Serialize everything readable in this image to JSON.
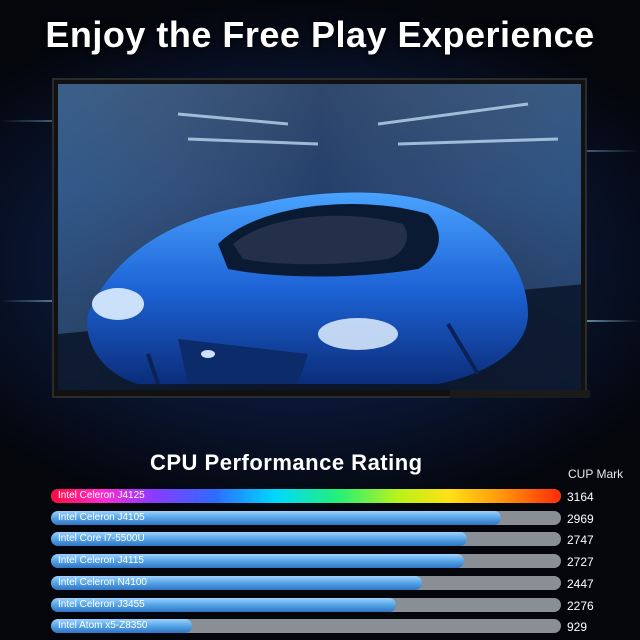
{
  "headline": "Enjoy the Free Play Experience",
  "chart_data": {
    "type": "bar",
    "orientation": "horizontal",
    "title": "CPU Performance Rating",
    "value_header": "CUP Mark",
    "categories": [
      "Intel Celeron J4125",
      "Intel Celeron J4105",
      "Intel Core i7-5500U",
      "Intel Celeron J4115",
      "Intel Celeron N4100",
      "Intel Celeron J3455",
      "Intel Atom x5-Z8350"
    ],
    "values": [
      3164,
      2969,
      2747,
      2727,
      2447,
      2276,
      929
    ],
    "highlight_index": 0,
    "colors": {
      "highlight": "rainbow",
      "bar": "#5aa9e8",
      "track": "#8a8f96"
    }
  }
}
